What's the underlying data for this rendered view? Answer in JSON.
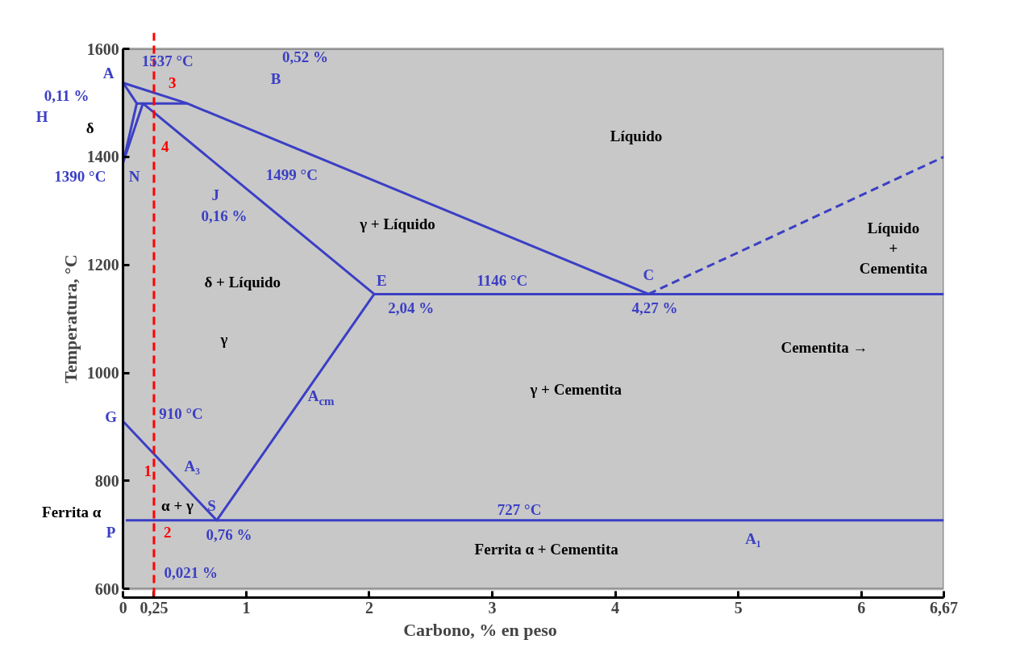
{
  "chart_data": {
    "type": "line",
    "xlabel": "Carbono, % en peso",
    "ylabel": "Temperatura, °C",
    "xlim": [
      0,
      6.67
    ],
    "ylim": [
      600,
      1600
    ],
    "xticks": [
      0,
      {
        "value": 0.25,
        "label": "0,25"
      },
      1,
      2,
      3,
      4,
      5,
      6,
      {
        "value": 6.67,
        "label": "6,67"
      }
    ],
    "yticks": [
      600,
      800,
      1000,
      1200,
      1400,
      1600
    ],
    "grid": false,
    "marker": "none",
    "series": [
      {
        "color": "#3b3fc4",
        "x": [
          0,
          0.52,
          4.27
        ],
        "values": [
          1537,
          1499,
          1146
        ]
      },
      {
        "color": "#3b3fc4",
        "x": [
          4.27,
          6.67
        ],
        "values": [
          1146,
          1400
        ],
        "line_style": "dashed"
      },
      {
        "color": "#3b3fc4",
        "x": [
          0,
          0.11,
          0
        ],
        "values": [
          1537,
          1499,
          1390
        ]
      },
      {
        "color": "#3b3fc4",
        "x": [
          0.11,
          0.52
        ],
        "values": [
          1499,
          1499
        ]
      },
      {
        "color": "#3b3fc4",
        "x": [
          0,
          0.16,
          2.04
        ],
        "values": [
          1390,
          1499,
          1146
        ]
      },
      {
        "color": "#3b3fc4",
        "x": [
          2.04,
          6.67
        ],
        "values": [
          1146,
          1146
        ]
      },
      {
        "color": "#3b3fc4",
        "x": [
          0,
          0.76,
          2.04
        ],
        "values": [
          910,
          727,
          1146
        ]
      },
      {
        "color": "#3b3fc4",
        "x": [
          0.021,
          6.67
        ],
        "values": [
          727,
          727
        ]
      }
    ],
    "ref_lines": [
      {
        "axis": "x",
        "value": 0.25,
        "color": "#ff0000",
        "line_style": "dashed"
      }
    ],
    "annotations": [
      "A",
      "1537 °C",
      "0,52 %",
      "B",
      "0,11 %",
      "H",
      "δ",
      "1390 °C",
      "N",
      "3",
      "4",
      "J",
      "0,16 %",
      "1499 °C",
      "Líquido",
      "γ + Líquido",
      "δ + Líquido",
      "E",
      "2,04 %",
      "1146 °C",
      "C",
      "4,27 %",
      "Líquido\n+\nCementita",
      "γ",
      "Cementita →",
      "A$_{cm}$",
      "γ + Cementita",
      "G",
      "910 °C",
      "1",
      "A₃",
      "α + γ",
      "Ferrita α",
      "P",
      "2",
      "S",
      "0,76 %",
      "727 °C",
      "A₁",
      "Ferrita α + Cementita",
      "0,021 %"
    ]
  }
}
